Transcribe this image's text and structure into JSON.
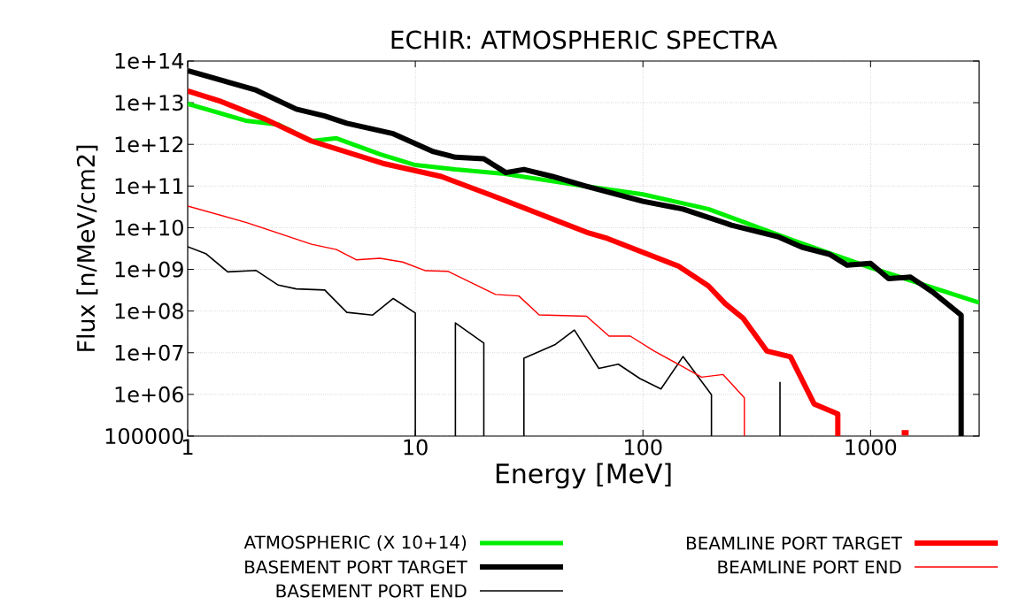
{
  "chart_data": {
    "type": "line",
    "title": "ECHIR: ATMOSPHERIC SPECTRA",
    "xlabel": "Energy [MeV]",
    "ylabel": "Flux [n/MeV/cm2]",
    "log": "xy",
    "grid": true,
    "legend": "bottom",
    "line_style": "solid",
    "xlim": [
      1,
      3000
    ],
    "xticks": [
      1,
      10,
      100,
      1000
    ],
    "ylim": [
      100000,
      100000000000000.0
    ],
    "yticks": [
      100000,
      {
        "value": 1000000.0,
        "label": "1e+06"
      },
      {
        "value": 10000000.0,
        "label": "1e+07"
      },
      {
        "value": 100000000.0,
        "label": "1e+08"
      },
      {
        "value": 1000000000.0,
        "label": "1e+09"
      },
      {
        "value": 10000000000.0,
        "label": "1e+10"
      },
      {
        "value": 100000000000.0,
        "label": "1e+11"
      },
      {
        "value": 1000000000000.0,
        "label": "1e+12"
      },
      {
        "value": 10000000000000.0,
        "label": "1e+13"
      },
      {
        "value": 100000000000000.0,
        "label": "1e+14"
      }
    ],
    "series": [
      {
        "name": "ATMOSPHERIC (X 10+14)",
        "color": "#00ee00",
        "x": [
          1,
          1.8,
          2.5,
          3.5,
          4.5,
          7,
          10,
          15,
          24,
          55,
          100,
          194,
          470,
          1000,
          3000
        ],
        "values": [
          9400000000000.0,
          3700000000000.0,
          3000000000000.0,
          1200000000000.0,
          1400000000000.0,
          580000000000.0,
          320000000000.0,
          250000000000.0,
          200000000000.0,
          100000000000.0,
          63000000000.0,
          28000000000.0,
          4700000000.0,
          1100000000.0,
          160000000.0
        ]
      },
      {
        "name": "BASEMENT PORT TARGET",
        "color": "#000000",
        "x": [
          1,
          2,
          3,
          4,
          5,
          8,
          12,
          15,
          20,
          25,
          30,
          40,
          56,
          100,
          150,
          230,
          245,
          395,
          500,
          660,
          790,
          1000,
          1200,
          1500,
          1900,
          2500,
          2500
        ],
        "values": [
          59000000000000.0,
          20000000000000.0,
          7000000000000.0,
          4800000000000.0,
          3200000000000.0,
          1800000000000.0,
          670000000000.0,
          490000000000.0,
          450000000000.0,
          210000000000.0,
          250000000000.0,
          170000000000.0,
          100000000000.0,
          43000000000.0,
          28000000000.0,
          13000000000.0,
          11500000000.0,
          6000000000.0,
          3400000000.0,
          2300000000.0,
          1260000000.0,
          1400000000.0,
          600000000.0,
          650000000.0,
          270000000.0,
          80000000.0,
          100000
        ]
      },
      {
        "name": "BASEMENT PORT END",
        "color": "#000000",
        "x": [
          1,
          1.2,
          1.5,
          2,
          2.5,
          3,
          4,
          5,
          6.5,
          8,
          10,
          10,
          null,
          15,
          15,
          20,
          20,
          null,
          30,
          30,
          41,
          50,
          64,
          78,
          97,
          120,
          150,
          200,
          200,
          null,
          400,
          400
        ],
        "values": [
          3500000000.0,
          2400000000.0,
          870000000.0,
          940000000.0,
          420000000.0,
          340000000.0,
          320000000.0,
          93000000.0,
          80000000.0,
          200000000.0,
          90000000.0,
          100000,
          null,
          100000,
          52000000.0,
          17000000.0,
          100000,
          null,
          100000,
          7400000.0,
          15500000.0,
          35000000.0,
          4200000.0,
          5300000.0,
          2400000.0,
          1350000.0,
          8100000.0,
          980000.0,
          100000,
          null,
          100000,
          2000000.0
        ]
      },
      {
        "name": "BEAMLINE PORT TARGET",
        "color": "#ff0000",
        "x": [
          1,
          1.4,
          2.2,
          3.5,
          7.2,
          13,
          22.5,
          56.5,
          70,
          143,
          194,
          230,
          275,
          350,
          445,
          565,
          718,
          718,
          null,
          1370,
          1470
        ],
        "values": [
          19000000000000.0,
          10700000000000.0,
          4000000000000.0,
          1200000000000.0,
          350000000000.0,
          170000000000.0,
          55000000000.0,
          7800000000.0,
          5500000000.0,
          1200000000.0,
          400000000.0,
          150000000.0,
          68000000.0,
          11000000.0,
          8000000.0,
          590000.0,
          340000.0,
          100000,
          null,
          120000,
          120000
        ]
      },
      {
        "name": "BEAMLINE PORT END",
        "color": "#ff0000",
        "x": [
          1,
          1.8,
          3.5,
          4.5,
          5.5,
          7,
          8.8,
          11.1,
          13.9,
          22.5,
          28.5,
          35,
          56.5,
          71,
          88,
          112,
          181,
          225,
          279,
          279
        ],
        "values": [
          33000000000.0,
          13500000000.0,
          4000000000.0,
          3000000000.0,
          1700000000.0,
          1850000000.0,
          1500000000.0,
          930000000.0,
          900000000.0,
          250000000.0,
          230000000.0,
          81000000.0,
          75000000.0,
          25000000.0,
          25000000.0,
          11000000.0,
          2600000.0,
          3000000.0,
          830000.0,
          100000
        ]
      }
    ]
  }
}
